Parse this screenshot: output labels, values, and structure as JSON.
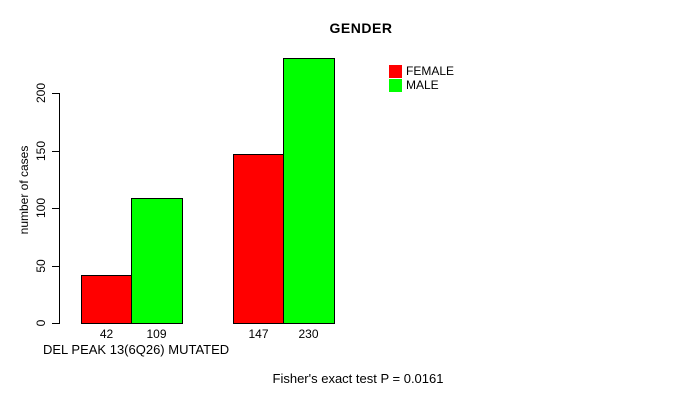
{
  "chart_data": {
    "type": "bar",
    "title": "GENDER",
    "ylabel": "number of cases",
    "xlabel": "",
    "categories": [
      "DEL PEAK 13(6Q26) MUTATED",
      ""
    ],
    "series": [
      {
        "name": "FEMALE",
        "color": "#ff0000",
        "values": [
          42,
          147
        ]
      },
      {
        "name": "MALE",
        "color": "#00ff00",
        "values": [
          109,
          230
        ]
      }
    ],
    "bar_value_labels": [
      [
        42,
        109
      ],
      [
        147,
        230
      ]
    ],
    "y_ticks": [
      0,
      50,
      100,
      150,
      200
    ],
    "ylim": [
      0,
      230
    ],
    "grid": false,
    "legend_position": "top-right",
    "bar_border_color": "#000000",
    "annotations": {
      "group1_label": "DEL PEAK 13(6Q26) MUTATED",
      "footer": "Fisher's exact test P = 0.0161"
    }
  }
}
